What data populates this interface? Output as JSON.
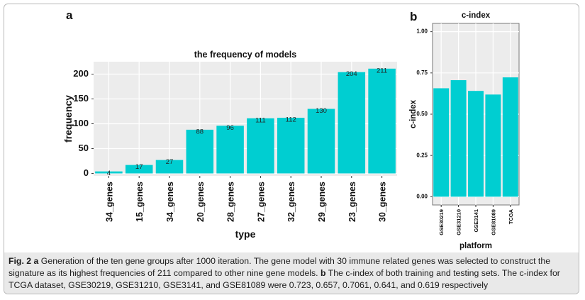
{
  "panel_a_letter": "a",
  "panel_b_letter": "b",
  "caption": {
    "fig_label": "Fig. 2",
    "a_letter": "a",
    "a_text": " Generation of the ten gene groups after 1000 iteration. The gene model with 30 immune related genes was selected to construct the signature as its highest frequencies of 211 compared to other nine gene models. ",
    "b_letter": "b",
    "b_text": " The c-index of both training and testing sets. The c-index for TCGA dataset, GSE30219, GSE31210, GSE3141, and GSE81089 were 0.723, 0.657, 0.7061, 0.641, and 0.619 respectively"
  },
  "chart_data": [
    {
      "type": "bar",
      "title": "the frequency of models",
      "xlabel": "type",
      "ylabel": "frequency",
      "categories": [
        "34_genes",
        "15_genes",
        "34_genes",
        "20_genes",
        "28_genes",
        "27_genes",
        "32_genes",
        "29_genes",
        "23_genes",
        "30_genes"
      ],
      "values": [
        4,
        17,
        27,
        88,
        96,
        111,
        112,
        130,
        204,
        211
      ],
      "data_labels": [
        "4",
        "17",
        "27",
        "88",
        "96",
        "111",
        "112",
        "130",
        "204",
        "211"
      ],
      "yticks": [
        0,
        50,
        100,
        150,
        200
      ],
      "ylim": [
        -5,
        225
      ],
      "color": "#00CED1",
      "panel_background": "#ececec",
      "grid": true
    },
    {
      "type": "bar",
      "title": "c-index",
      "xlabel": "platform",
      "ylabel": "c-index",
      "categories": [
        "GSE30219",
        "GSE31210",
        "GSE3141",
        "GSE81089",
        "TCGA"
      ],
      "values": [
        0.657,
        0.7061,
        0.641,
        0.619,
        0.723
      ],
      "yticks": [
        0.0,
        0.25,
        0.5,
        0.75,
        1.0
      ],
      "ytick_labels": [
        "0.00",
        "0.25",
        "0.50",
        "0.75",
        "1.00"
      ],
      "ylim": [
        -0.05,
        1.05
      ],
      "color": "#00CED1",
      "panel_background": "#ececec",
      "grid": true
    }
  ]
}
